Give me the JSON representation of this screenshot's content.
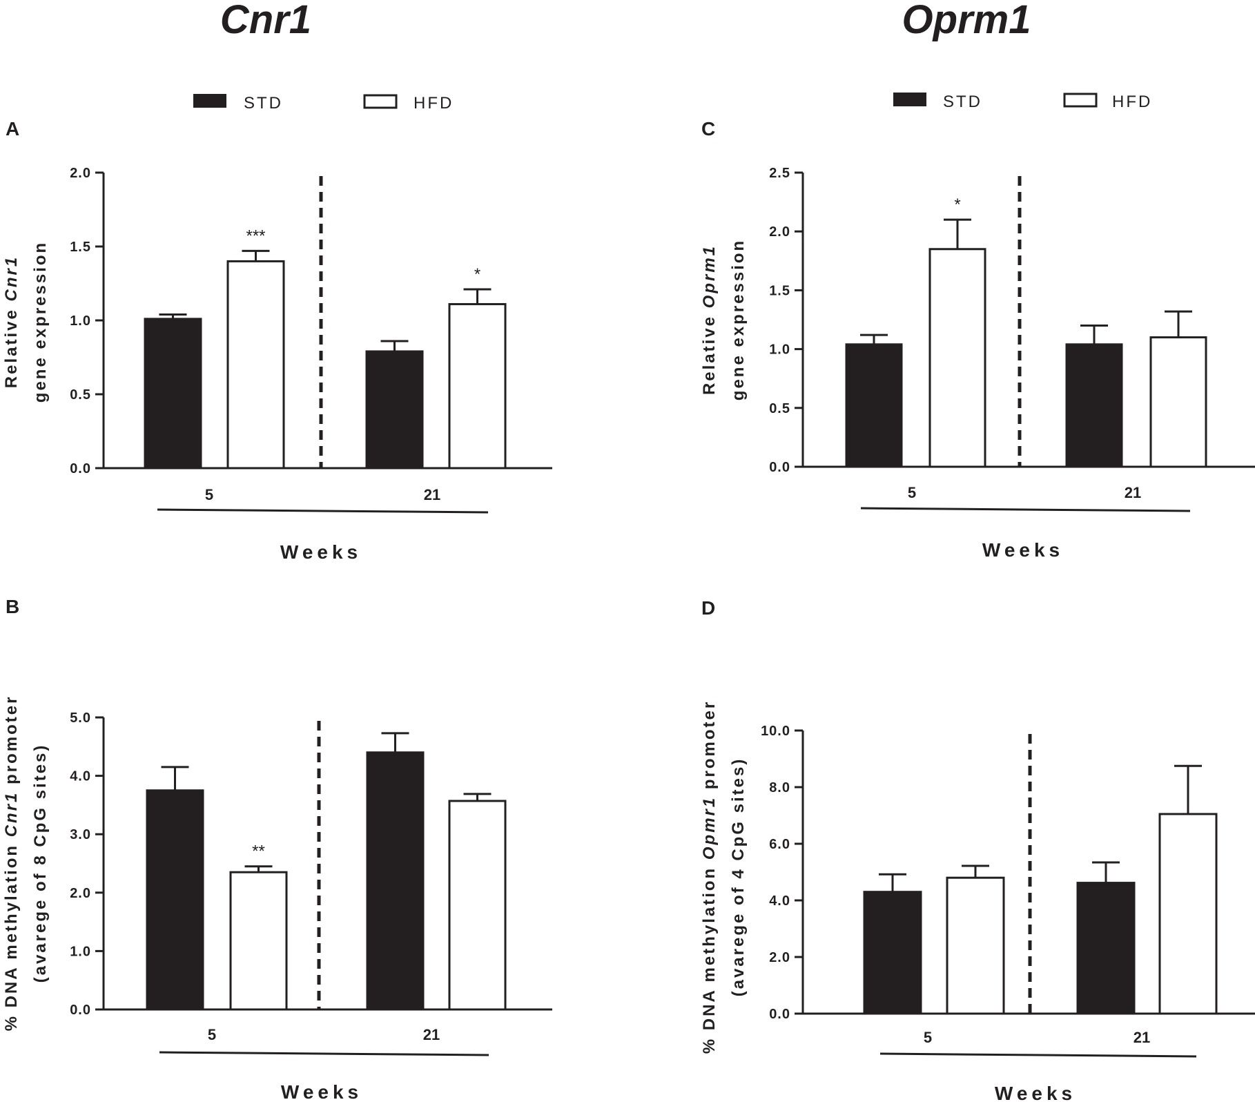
{
  "headings": {
    "cnr1": "Cnr1",
    "oprm1": "Oprm1"
  },
  "legend_left": {
    "std": "STD",
    "hfd": "HFD"
  },
  "legend_right": {
    "std": "STD",
    "hfd": "HFD"
  },
  "colors": {
    "std": "#231f20",
    "hfd": "#ffffff",
    "stroke": "#231f20"
  },
  "chart_data": [
    {
      "panel": "A",
      "type": "bar",
      "title": "",
      "ylabel_line1_prefix": "Relative ",
      "ylabel_line1_italic": "Cnr1",
      "ylabel_line2": "gene expression",
      "xlabel": "Weeks",
      "categories": [
        "5",
        "21"
      ],
      "ylim": [
        0,
        2
      ],
      "yticks": [
        "0.0",
        "0.5",
        "1.0",
        "1.5",
        "2.0"
      ],
      "series": [
        {
          "name": "STD",
          "values": [
            1.01,
            0.79
          ],
          "errors": [
            0.03,
            0.07
          ]
        },
        {
          "name": "HFD",
          "values": [
            1.4,
            1.11
          ],
          "errors": [
            0.07,
            0.1
          ]
        }
      ],
      "significance": [
        [
          "",
          ""
        ],
        [
          "***",
          "*"
        ]
      ]
    },
    {
      "panel": "B",
      "type": "bar",
      "title": "",
      "ylabel_line1_prefix": "% DNA methylation ",
      "ylabel_line1_italic": "Cnr1",
      "ylabel_line1_suffix": " promoter",
      "ylabel_line2": "(avarege of 8 CpG sites)",
      "xlabel": "Weeks",
      "categories": [
        "5",
        "21"
      ],
      "ylim": [
        0,
        5
      ],
      "yticks": [
        "0.0",
        "1.0",
        "2.0",
        "3.0",
        "4.0",
        "5.0"
      ],
      "series": [
        {
          "name": "STD",
          "values": [
            3.75,
            4.4
          ],
          "errors": [
            0.4,
            0.33
          ]
        },
        {
          "name": "HFD",
          "values": [
            2.35,
            3.57
          ],
          "errors": [
            0.1,
            0.12
          ]
        }
      ],
      "significance": [
        [
          "",
          ""
        ],
        [
          "**",
          ""
        ]
      ]
    },
    {
      "panel": "C",
      "type": "bar",
      "title": "",
      "ylabel_line1_prefix": "Relative ",
      "ylabel_line1_italic": "Oprm1",
      "ylabel_line2": "gene expression",
      "xlabel": "Weeks",
      "categories": [
        "5",
        "21"
      ],
      "ylim": [
        0,
        2.5
      ],
      "yticks": [
        "0.0",
        "0.5",
        "1.0",
        "1.5",
        "2.0",
        "2.5"
      ],
      "series": [
        {
          "name": "STD",
          "values": [
            1.04,
            1.04
          ],
          "errors": [
            0.08,
            0.16
          ]
        },
        {
          "name": "HFD",
          "values": [
            1.85,
            1.1
          ],
          "errors": [
            0.25,
            0.22
          ]
        }
      ],
      "significance": [
        [
          "",
          ""
        ],
        [
          "*",
          ""
        ]
      ]
    },
    {
      "panel": "D",
      "type": "bar",
      "title": "",
      "ylabel_line1_prefix": "% DNA methylation ",
      "ylabel_line1_italic": "Opmr1",
      "ylabel_line1_suffix": " promoter",
      "ylabel_line2": "(avarege of 4 CpG sites)",
      "xlabel": "Weeks",
      "categories": [
        "5",
        "21"
      ],
      "ylim": [
        0,
        10
      ],
      "yticks": [
        "0.0",
        "2.0",
        "4.0",
        "6.0",
        "8.0",
        "10.0"
      ],
      "series": [
        {
          "name": "STD",
          "values": [
            4.3,
            4.62
          ],
          "errors": [
            0.62,
            0.72
          ]
        },
        {
          "name": "HFD",
          "values": [
            4.8,
            7.05
          ],
          "errors": [
            0.42,
            1.7
          ]
        }
      ],
      "significance": [
        [
          "",
          ""
        ],
        [
          "",
          ""
        ]
      ]
    }
  ]
}
